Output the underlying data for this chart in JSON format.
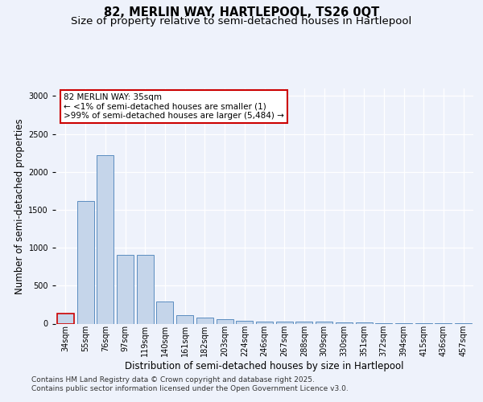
{
  "title1": "82, MERLIN WAY, HARTLEPOOL, TS26 0QT",
  "title2": "Size of property relative to semi-detached houses in Hartlepool",
  "xlabel": "Distribution of semi-detached houses by size in Hartlepool",
  "ylabel": "Number of semi-detached properties",
  "categories": [
    "34sqm",
    "55sqm",
    "76sqm",
    "97sqm",
    "119sqm",
    "140sqm",
    "161sqm",
    "182sqm",
    "203sqm",
    "224sqm",
    "246sqm",
    "267sqm",
    "288sqm",
    "309sqm",
    "330sqm",
    "351sqm",
    "372sqm",
    "394sqm",
    "415sqm",
    "436sqm",
    "457sqm"
  ],
  "values": [
    130,
    1620,
    2220,
    910,
    910,
    290,
    110,
    75,
    60,
    40,
    30,
    28,
    25,
    25,
    20,
    15,
    10,
    5,
    3,
    2,
    1
  ],
  "bar_color": "#c5d5ea",
  "bar_edge_color": "#5b8dc0",
  "highlight_bar_index": 0,
  "annotation_line1": "82 MERLIN WAY: 35sqm",
  "annotation_line2": "← <1% of semi-detached houses are smaller (1)",
  "annotation_line3": ">99% of semi-detached houses are larger (5,484) →",
  "annotation_box_color": "#ffffff",
  "annotation_box_edge": "#cc0000",
  "footer_text": "Contains HM Land Registry data © Crown copyright and database right 2025.\nContains public sector information licensed under the Open Government Licence v3.0.",
  "ylim": [
    0,
    3100
  ],
  "background_color": "#eef2fb",
  "plot_bg_color": "#eef2fb",
  "grid_color": "#ffffff",
  "title_fontsize": 10.5,
  "subtitle_fontsize": 9.5,
  "tick_fontsize": 7,
  "ylabel_fontsize": 8.5,
  "xlabel_fontsize": 8.5,
  "footer_fontsize": 6.5,
  "annotation_fontsize": 7.5
}
